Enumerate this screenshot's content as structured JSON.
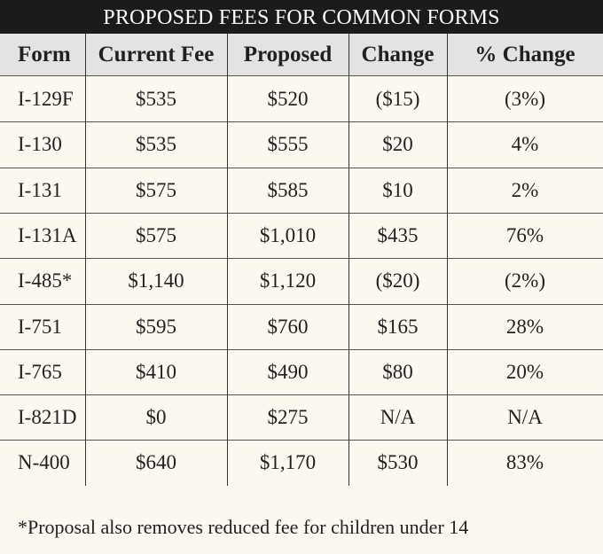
{
  "header": {
    "title": "PROPOSED FEES FOR COMMON FORMS"
  },
  "table": {
    "columns": [
      "Form",
      "Current Fee",
      "Proposed",
      "Change",
      "% Change"
    ],
    "rows": [
      [
        "I-129F",
        "$535",
        "$520",
        "($15)",
        "(3%)"
      ],
      [
        "I-130",
        "$535",
        "$555",
        "$20",
        "4%"
      ],
      [
        "I-131",
        "$575",
        "$585",
        "$10",
        "2%"
      ],
      [
        "I-131A",
        "$575",
        "$1,010",
        "$435",
        "76%"
      ],
      [
        "I-485*",
        "$1,140",
        "$1,120",
        "($20)",
        "(2%)"
      ],
      [
        "I-751",
        "$595",
        "$760",
        "$165",
        "28%"
      ],
      [
        "I-765",
        "$410",
        "$490",
        "$80",
        "20%"
      ],
      [
        "I-821D",
        "$0",
        "$275",
        "N/A",
        "N/A"
      ],
      [
        "N-400",
        "$640",
        "$1,170",
        "$530",
        "83%"
      ]
    ]
  },
  "footnote": "*Proposal also removes reduced fee for children under 14"
}
